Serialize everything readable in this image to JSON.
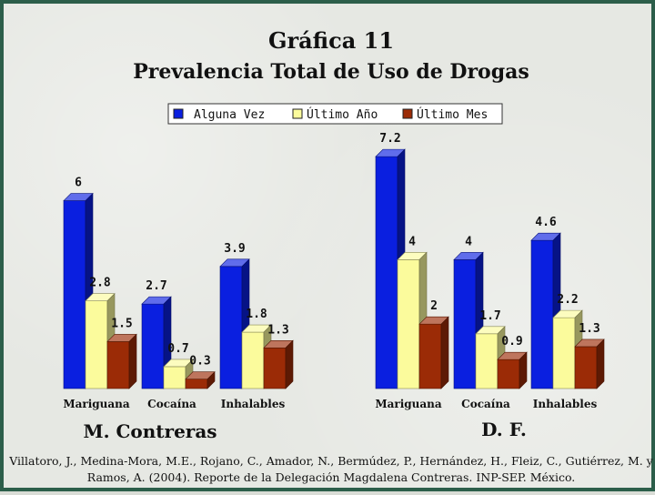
{
  "title_lines": [
    "Gráfica 11",
    "Prevalencia Total de Uso de Drogas"
  ],
  "colors": {
    "alguna_vez": "#0a1fe0",
    "ultimo_anio": "#fbfb9c",
    "ultimo_mes": "#9b2b06"
  },
  "chart_data": [
    {
      "type": "bar",
      "panel_label": "M. Contreras",
      "categories": [
        "Mariguana",
        "Cocaína",
        "Inhalables"
      ],
      "series": [
        {
          "name": "Alguna Vez",
          "values": [
            6,
            2.7,
            3.9
          ],
          "labels": [
            "6",
            "2.7",
            "3.9"
          ]
        },
        {
          "name": "Último Año",
          "values": [
            2.8,
            0.7,
            1.8
          ],
          "labels": [
            "2.8",
            "0.7",
            "1.8"
          ]
        },
        {
          "name": "Último Mes",
          "values": [
            1.5,
            0.3,
            1.3
          ],
          "labels": [
            "1.5",
            "0.3",
            "1.3"
          ]
        }
      ],
      "ylim": [
        0,
        7.2
      ],
      "legend": "top-right",
      "grid": false
    },
    {
      "type": "bar",
      "panel_label": "D. F.",
      "categories": [
        "Mariguana",
        "Cocaína",
        "Inhalables"
      ],
      "series": [
        {
          "name": "Alguna Vez",
          "values": [
            7.2,
            4,
            4.6
          ],
          "labels": [
            "7.2",
            "4",
            "4.6"
          ]
        },
        {
          "name": "Último Año",
          "values": [
            4,
            1.7,
            2.2
          ],
          "labels": [
            "4",
            "1.7",
            "2.2"
          ]
        },
        {
          "name": "Último Mes",
          "values": [
            2,
            0.9,
            1.3
          ],
          "labels": [
            "2",
            "0.9",
            "1.3"
          ]
        }
      ],
      "ylim": [
        0,
        7.2
      ],
      "grid": false
    }
  ],
  "legend": [
    "Alguna Vez",
    "Último Año",
    "Último Mes"
  ],
  "citation": "Villatoro, J., Medina-Mora, M.E., Rojano, C., Amador, N., Bermúdez, P., Hernández, H., Fleiz, C., Gutiérrez, M. y Ramos, A. (2004). Reporte de la Delegación Magdalena Contreras. INP-SEP. México."
}
